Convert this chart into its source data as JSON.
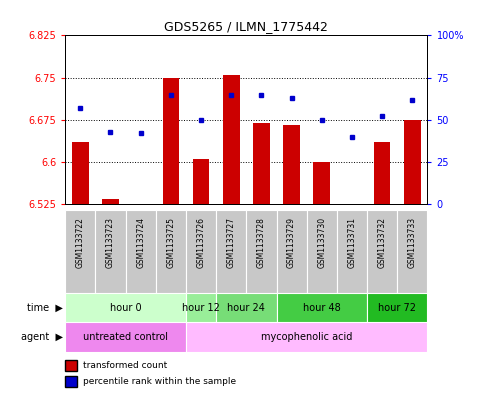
{
  "title": "GDS5265 / ILMN_1775442",
  "samples": [
    "GSM1133722",
    "GSM1133723",
    "GSM1133724",
    "GSM1133725",
    "GSM1133726",
    "GSM1133727",
    "GSM1133728",
    "GSM1133729",
    "GSM1133730",
    "GSM1133731",
    "GSM1133732",
    "GSM1133733"
  ],
  "transformed_count": [
    6.635,
    6.535,
    6.525,
    6.75,
    6.605,
    6.755,
    6.67,
    6.665,
    6.6,
    6.525,
    6.635,
    6.675
  ],
  "percentile_rank": [
    57,
    43,
    42,
    65,
    50,
    65,
    65,
    63,
    50,
    40,
    52,
    62
  ],
  "y_min": 6.525,
  "y_max": 6.825,
  "y_ticks_left": [
    6.525,
    6.6,
    6.675,
    6.75,
    6.825
  ],
  "y_ticks_right_vals": [
    0,
    25,
    50,
    75,
    100
  ],
  "dotted_lines": [
    6.6,
    6.675,
    6.75
  ],
  "bar_color": "#cc0000",
  "dot_color": "#0000cc",
  "time_labels": [
    {
      "label": "hour 0",
      "start": 0,
      "end": 3,
      "color": "#ccffcc"
    },
    {
      "label": "hour 12",
      "start": 4,
      "end": 4,
      "color": "#99ee99"
    },
    {
      "label": "hour 24",
      "start": 5,
      "end": 6,
      "color": "#77dd77"
    },
    {
      "label": "hour 48",
      "start": 7,
      "end": 9,
      "color": "#44cc44"
    },
    {
      "label": "hour 72",
      "start": 10,
      "end": 11,
      "color": "#22bb22"
    }
  ],
  "agent_labels": [
    {
      "label": "untreated control",
      "start": 0,
      "end": 3,
      "color": "#ee88ee"
    },
    {
      "label": "mycophenolic acid",
      "start": 4,
      "end": 11,
      "color": "#ffbbff"
    }
  ],
  "legend_items": [
    {
      "color": "#cc0000",
      "label": "transformed count"
    },
    {
      "color": "#0000cc",
      "label": "percentile rank within the sample"
    }
  ],
  "sample_bg_color": "#c8c8c8",
  "sample_font_size": 5.5,
  "bar_width": 0.55
}
